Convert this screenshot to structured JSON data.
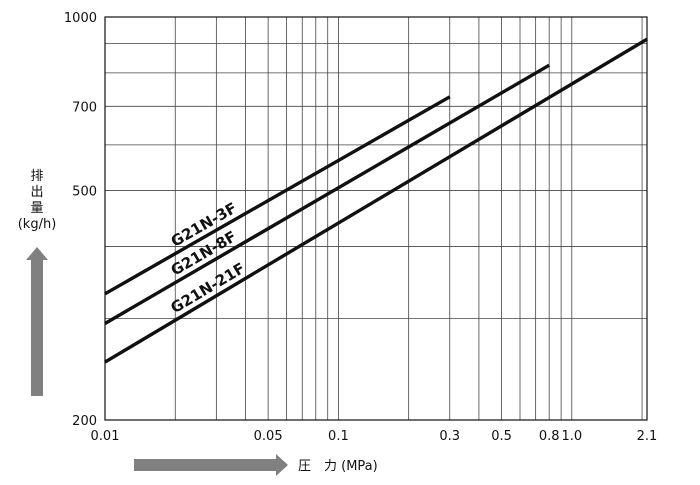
{
  "chart_data": {
    "type": "line",
    "x_scale": "log",
    "y_scale": "log",
    "xlabel": "圧　力 (MPa)",
    "ylabel": [
      "排",
      "出",
      "量",
      "(kg/h)"
    ],
    "xlim": [
      0.01,
      2.1
    ],
    "ylim": [
      200,
      1000
    ],
    "x_ticks": [
      {
        "value": 0.01,
        "label": "0.01"
      },
      {
        "value": 0.05,
        "label": "0.05"
      },
      {
        "value": 0.1,
        "label": "0.1"
      },
      {
        "value": 0.3,
        "label": "0.3"
      },
      {
        "value": 0.5,
        "label": "0.5"
      },
      {
        "value": 0.8,
        "label": "0.8"
      },
      {
        "value": 1.0,
        "label": "1.0"
      },
      {
        "value": 2.1,
        "label": "2.1"
      }
    ],
    "y_ticks": [
      {
        "value": 200,
        "label": "200"
      },
      {
        "value": 500,
        "label": "500"
      },
      {
        "value": 700,
        "label": "700"
      },
      {
        "value": 1000,
        "label": "1000"
      }
    ],
    "x_grid": [
      0.02,
      0.03,
      0.04,
      0.05,
      0.06,
      0.07,
      0.08,
      0.09,
      0.1,
      0.2,
      0.3,
      0.4,
      0.5,
      0.6,
      0.7,
      0.8,
      0.9,
      1.0,
      2.0
    ],
    "y_grid": [
      300,
      400,
      500,
      600,
      700,
      800,
      900
    ],
    "grid": true,
    "series": [
      {
        "name": "G21N-3F",
        "x": [
          0.01,
          0.3
        ],
        "y": [
          331,
          727
        ]
      },
      {
        "name": "G21N-8F",
        "x": [
          0.01,
          0.8
        ],
        "y": [
          294,
          825
        ]
      },
      {
        "name": "G21N-21F",
        "x": [
          0.01,
          2.1
        ],
        "y": [
          252,
          915
        ]
      }
    ],
    "line_color": "#111111",
    "arrow_color": "#808080"
  }
}
